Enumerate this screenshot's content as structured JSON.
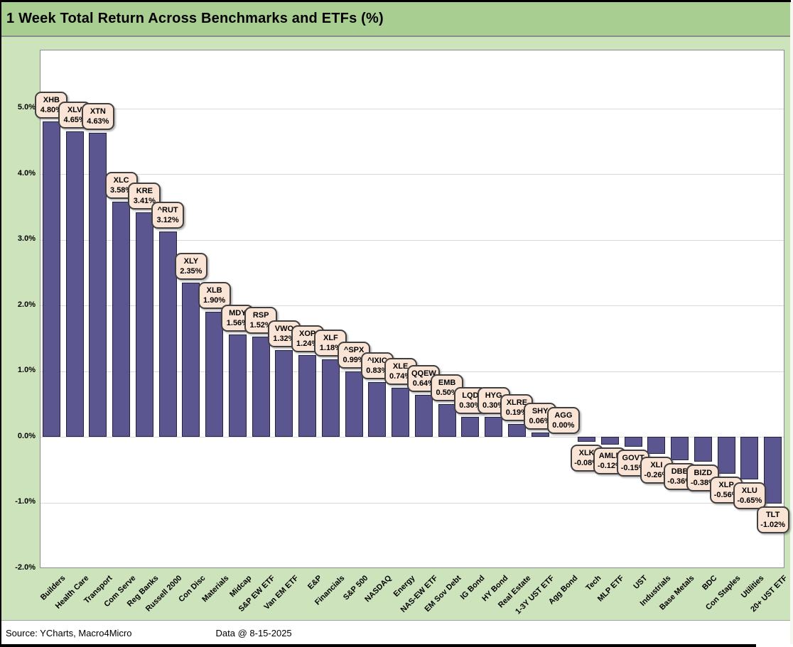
{
  "title": "1 Week Total Return Across Benchmarks and ETFs (%)",
  "footer": {
    "source": "Source: YCharts, Macro4Micro",
    "data_date": "Data @ 8-15-2025"
  },
  "colors": {
    "title_bg": "#a9ce91",
    "chart_bg": "#cde3bb",
    "plot_bg": "#ffffff",
    "gridline": "#d9d9d9",
    "bar_fill": "#5b5590",
    "bar_border": "#23203f",
    "callout_bg": "#f9e4d5",
    "callout_border": "#404040",
    "text": "#000000"
  },
  "chart_data": {
    "type": "bar",
    "title": "1 Week Total Return Across Benchmarks and ETFs (%)",
    "xlabel": "",
    "ylabel": "",
    "ylim": [
      -2.0,
      5.89
    ],
    "grid": true,
    "legend_position": "none",
    "y_ticks": [
      "5.0%",
      "4.0%",
      "3.0%",
      "2.0%",
      "1.0%",
      "0.0%",
      "-1.0%",
      "-2.0%"
    ],
    "y_tick_values": [
      5,
      4,
      3,
      2,
      1,
      0,
      -1,
      -2
    ],
    "bars": [
      {
        "category": "Builders",
        "ticker": "XHB",
        "value": 4.8,
        "label": "4.80%"
      },
      {
        "category": "Health Care",
        "ticker": "XLV",
        "value": 4.65,
        "label": "4.65%"
      },
      {
        "category": "Transport",
        "ticker": "XTN",
        "value": 4.63,
        "label": "4.63%"
      },
      {
        "category": "Com Serve",
        "ticker": "XLC",
        "value": 3.58,
        "label": "3.58%"
      },
      {
        "category": "Reg Banks",
        "ticker": "KRE",
        "value": 3.41,
        "label": "3.41%"
      },
      {
        "category": "Russell 2000",
        "ticker": "^RUT",
        "value": 3.12,
        "label": "3.12%"
      },
      {
        "category": "Con Disc",
        "ticker": "XLY",
        "value": 2.35,
        "label": "2.35%"
      },
      {
        "category": "Materials",
        "ticker": "XLB",
        "value": 1.9,
        "label": "1.90%"
      },
      {
        "category": "Midcap",
        "ticker": "MDY",
        "value": 1.56,
        "label": "1.56%"
      },
      {
        "category": "S&P EW ETF",
        "ticker": "RSP",
        "value": 1.52,
        "label": "1.52%"
      },
      {
        "category": "Van EM ETF",
        "ticker": "VWO",
        "value": 1.32,
        "label": "1.32%"
      },
      {
        "category": "E&P",
        "ticker": "XOP",
        "value": 1.24,
        "label": "1.24%"
      },
      {
        "category": "Financials",
        "ticker": "XLF",
        "value": 1.18,
        "label": "1.18%"
      },
      {
        "category": "S&P 500",
        "ticker": "^SPX",
        "value": 0.99,
        "label": "0.99%"
      },
      {
        "category": "NASDAQ",
        "ticker": "^IXIC",
        "value": 0.83,
        "label": "0.83%"
      },
      {
        "category": "Energy",
        "ticker": "XLE",
        "value": 0.74,
        "label": "0.74%"
      },
      {
        "category": "NAS-EW ETF",
        "ticker": "QQEW",
        "value": 0.64,
        "label": "0.64%"
      },
      {
        "category": "EM Sov Debt",
        "ticker": "EMB",
        "value": 0.5,
        "label": "0.50%"
      },
      {
        "category": "IG Bond",
        "ticker": "LQD",
        "value": 0.3,
        "label": "0.30%"
      },
      {
        "category": "HY Bond",
        "ticker": "HYG",
        "value": 0.3,
        "label": "0.30%"
      },
      {
        "category": "Real Estate",
        "ticker": "XLRE",
        "value": 0.19,
        "label": "0.19%"
      },
      {
        "category": "1-3Y UST ETF",
        "ticker": "SHY",
        "value": 0.06,
        "label": "0.06%"
      },
      {
        "category": "Agg Bond",
        "ticker": "AGG",
        "value": 0.0,
        "label": "0.00%"
      },
      {
        "category": "Tech",
        "ticker": "XLK",
        "value": -0.08,
        "label": "-0.08%"
      },
      {
        "category": "MLP ETF",
        "ticker": "AMLP",
        "value": -0.12,
        "label": "-0.12%"
      },
      {
        "category": "UST",
        "ticker": "GOVT",
        "value": -0.15,
        "label": "-0.15%"
      },
      {
        "category": "Industrials",
        "ticker": "XLI",
        "value": -0.26,
        "label": "-0.26%"
      },
      {
        "category": "Base Metals",
        "ticker": "DBB",
        "value": -0.36,
        "label": "-0.36%"
      },
      {
        "category": "BDC",
        "ticker": "BIZD",
        "value": -0.38,
        "label": "-0.38%"
      },
      {
        "category": "Con Staples",
        "ticker": "XLP",
        "value": -0.56,
        "label": "-0.56%"
      },
      {
        "category": "Utilities",
        "ticker": "XLU",
        "value": -0.65,
        "label": "-0.65%"
      },
      {
        "category": "20+ UST ETF",
        "ticker": "TLT",
        "value": -1.02,
        "label": "-1.02%"
      }
    ]
  }
}
